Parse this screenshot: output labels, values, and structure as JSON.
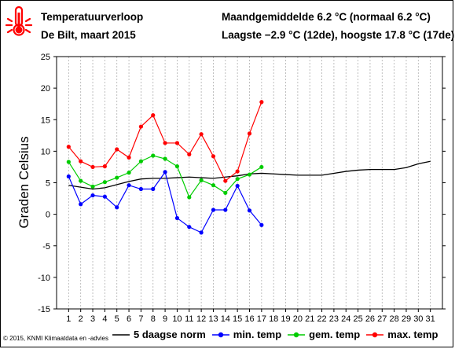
{
  "header": {
    "title": "Temperatuurverloop",
    "subtitle": "De Bilt, maart 2015",
    "stat_line1": "Maandgemiddelde 6.2 °C (normaal 6.2 °C)",
    "stat_line2": "Laagste −2.9 °C (12de), hoogste 17.8 °C (17de)"
  },
  "copyright": "© 2015, KNMI Klimaatdata en -advies",
  "icon": "thermometer-icon",
  "colors": {
    "norm": "#000000",
    "min": "#0000ff",
    "gem": "#00cc00",
    "max": "#ff0000",
    "grid": "#b0b0b0",
    "title": "#000000",
    "icon": "#ff0000"
  },
  "chart_data": {
    "type": "line",
    "ylabel": "Graden Celsius",
    "xlabel": "",
    "ylim": [
      -15,
      25
    ],
    "xlim": [
      1,
      31
    ],
    "yticks": [
      -15,
      -10,
      -5,
      0,
      5,
      10,
      15,
      20,
      25
    ],
    "xticks": [
      1,
      2,
      3,
      4,
      5,
      6,
      7,
      8,
      9,
      10,
      11,
      12,
      13,
      14,
      15,
      16,
      17,
      18,
      19,
      20,
      21,
      22,
      23,
      24,
      25,
      26,
      27,
      28,
      29,
      30,
      31
    ],
    "grid": "vertical dashed",
    "legend_position": "bottom",
    "series": [
      {
        "name": "5 daagse norm",
        "color": "#000000",
        "marker": false,
        "x": [
          1,
          2,
          3,
          4,
          5,
          6,
          7,
          8,
          9,
          10,
          11,
          12,
          13,
          14,
          15,
          16,
          17,
          18,
          19,
          20,
          21,
          22,
          23,
          24,
          25,
          26,
          27,
          28,
          29,
          30,
          31
        ],
        "values": [
          4.6,
          4.3,
          4.0,
          4.2,
          4.7,
          5.2,
          5.6,
          5.7,
          5.7,
          5.8,
          5.9,
          5.8,
          5.7,
          5.9,
          6.1,
          6.4,
          6.5,
          6.4,
          6.3,
          6.2,
          6.2,
          6.2,
          6.5,
          6.8,
          7.0,
          7.1,
          7.1,
          7.1,
          7.4,
          8.0,
          8.4
        ]
      },
      {
        "name": "min. temp",
        "color": "#0000ff",
        "marker": true,
        "x": [
          1,
          2,
          3,
          4,
          5,
          6,
          7,
          8,
          9,
          10,
          11,
          12,
          13,
          14,
          15,
          16,
          17
        ],
        "values": [
          6.0,
          1.6,
          3.0,
          2.8,
          1.1,
          4.6,
          4.0,
          4.0,
          6.7,
          -0.6,
          -2.0,
          -2.9,
          0.7,
          0.7,
          4.5,
          0.6,
          -1.7
        ]
      },
      {
        "name": "gem. temp",
        "color": "#00cc00",
        "marker": true,
        "x": [
          1,
          2,
          3,
          4,
          5,
          6,
          7,
          8,
          9,
          10,
          11,
          12,
          13,
          14,
          15,
          16,
          17
        ],
        "values": [
          8.3,
          5.3,
          4.4,
          5.1,
          5.8,
          6.6,
          8.4,
          9.3,
          8.8,
          7.6,
          2.7,
          5.4,
          4.6,
          3.4,
          5.6,
          6.3,
          7.5
        ]
      },
      {
        "name": "max. temp",
        "color": "#ff0000",
        "marker": true,
        "x": [
          1,
          2,
          3,
          4,
          5,
          6,
          7,
          8,
          9,
          10,
          11,
          12,
          13,
          14,
          15,
          16,
          17
        ],
        "values": [
          10.7,
          8.4,
          7.5,
          7.6,
          10.3,
          9.0,
          13.9,
          15.7,
          11.3,
          11.3,
          9.5,
          12.7,
          9.2,
          5.3,
          6.8,
          12.8,
          17.8
        ]
      }
    ]
  }
}
